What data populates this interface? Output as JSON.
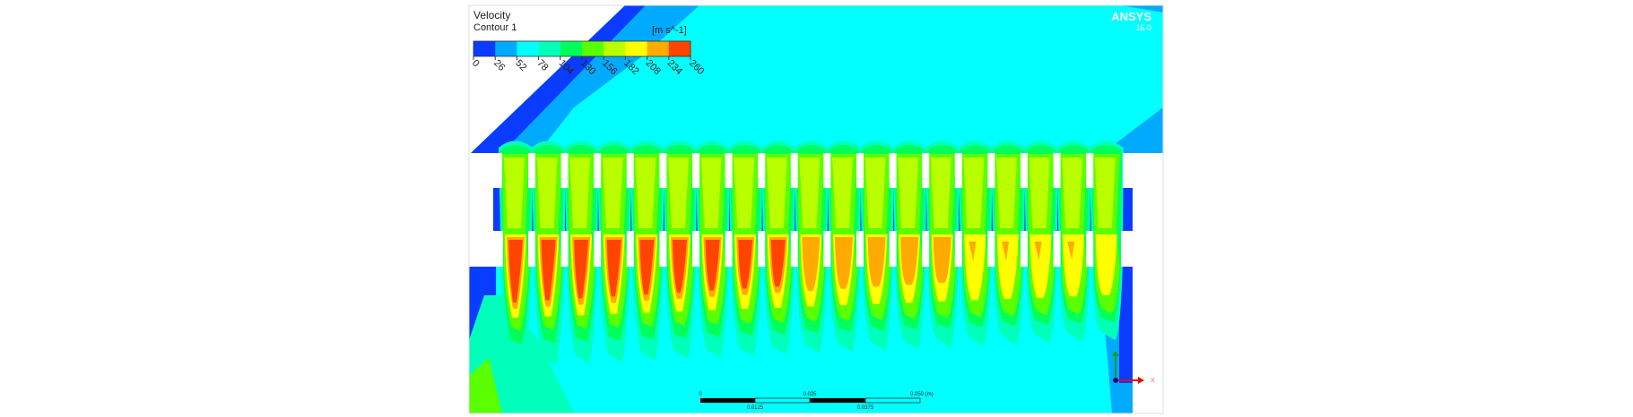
{
  "chart_data": {
    "type": "heatmap",
    "title": "Velocity",
    "subtitle": "Contour 1",
    "units": "[m s^-1]",
    "colorbar": {
      "ticks": [
        "0",
        "26",
        "52",
        "78",
        "104",
        "130",
        "156",
        "182",
        "208",
        "234",
        "260"
      ],
      "range": [
        0,
        260
      ],
      "colors": [
        "#0a3cff",
        "#00aaff",
        "#00ffff",
        "#00ffbb",
        "#00ff5a",
        "#5aff00",
        "#baff00",
        "#ffff00",
        "#ffaa00",
        "#ff4400"
      ]
    },
    "scale_bar": {
      "top_labels": [
        "0",
        "0.025",
        "0.050 (m)"
      ],
      "bottom_labels": [
        "0.0125",
        "0.0375"
      ]
    },
    "axes_triad": {
      "x": "X",
      "y": "Y"
    },
    "branding": {
      "name": "ANSYS",
      "version": "16.0"
    },
    "jet_count": 19,
    "jet_core_velocity_trend": "decreasing left to right"
  }
}
